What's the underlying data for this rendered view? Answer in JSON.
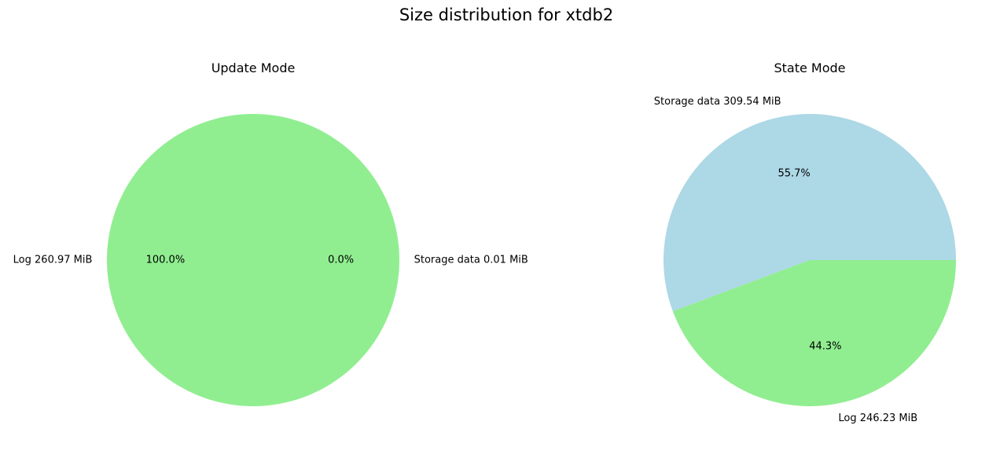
{
  "figure": {
    "title": "Size distribution for xtdb2"
  },
  "chart_data": [
    {
      "type": "pie",
      "title": "Update Mode",
      "slices": [
        {
          "label": "Storage data",
          "value_mib": 0.01,
          "text": "Storage data 0.01 MiB",
          "pct": "0.0%",
          "color": "#add8e6"
        },
        {
          "label": "Log",
          "value_mib": 260.97,
          "text": "Log 260.97 MiB",
          "pct": "100.0%",
          "color": "#90ee90"
        }
      ]
    },
    {
      "type": "pie",
      "title": "State Mode",
      "slices": [
        {
          "label": "Storage data",
          "value_mib": 309.54,
          "text": "Storage data 309.54 MiB",
          "pct": "55.7%",
          "color": "#add8e6"
        },
        {
          "label": "Log",
          "value_mib": 246.23,
          "text": "Log 246.23 MiB",
          "pct": "44.3%",
          "color": "#90ee90"
        }
      ]
    }
  ]
}
